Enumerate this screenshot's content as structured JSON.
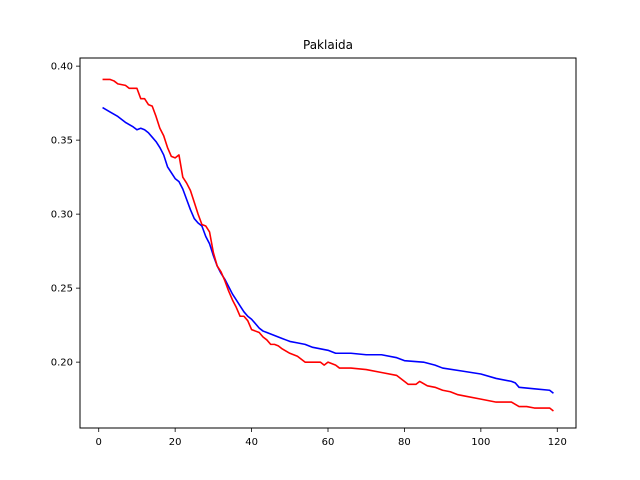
{
  "chart_data": {
    "type": "line",
    "title": "Paklaida",
    "xlabel": "",
    "ylabel": "",
    "xlim": [
      -4.9,
      124.9
    ],
    "ylim": [
      0.1555,
      0.4055
    ],
    "xticks": [
      0,
      20,
      40,
      60,
      80,
      100,
      120
    ],
    "yticks": [
      0.2,
      0.25,
      0.3,
      0.35,
      0.4
    ],
    "xtick_labels": [
      "0",
      "20",
      "40",
      "60",
      "80",
      "100",
      "120"
    ],
    "ytick_labels": [
      "0.20",
      "0.25",
      "0.30",
      "0.35",
      "0.40"
    ],
    "grid": false,
    "legend": "none",
    "series": [
      {
        "color": "#0000ff",
        "points": [
          [
            1,
            0.372
          ],
          [
            3,
            0.369
          ],
          [
            5,
            0.366
          ],
          [
            7,
            0.362
          ],
          [
            9,
            0.359
          ],
          [
            10,
            0.357
          ],
          [
            11,
            0.358
          ],
          [
            12,
            0.357
          ],
          [
            13,
            0.355
          ],
          [
            14,
            0.352
          ],
          [
            15,
            0.349
          ],
          [
            16,
            0.345
          ],
          [
            17,
            0.34
          ],
          [
            18,
            0.332
          ],
          [
            19,
            0.328
          ],
          [
            20,
            0.324
          ],
          [
            21,
            0.322
          ],
          [
            22,
            0.317
          ],
          [
            23,
            0.31
          ],
          [
            24,
            0.303
          ],
          [
            25,
            0.297
          ],
          [
            26,
            0.294
          ],
          [
            27,
            0.292
          ],
          [
            28,
            0.285
          ],
          [
            29,
            0.28
          ],
          [
            30,
            0.272
          ],
          [
            31,
            0.265
          ],
          [
            32,
            0.26
          ],
          [
            33,
            0.256
          ],
          [
            34,
            0.251
          ],
          [
            35,
            0.246
          ],
          [
            36,
            0.242
          ],
          [
            37,
            0.238
          ],
          [
            38,
            0.234
          ],
          [
            39,
            0.231
          ],
          [
            40,
            0.229
          ],
          [
            41,
            0.226
          ],
          [
            42,
            0.223
          ],
          [
            43,
            0.221
          ],
          [
            44,
            0.22
          ],
          [
            45,
            0.219
          ],
          [
            46,
            0.218
          ],
          [
            47,
            0.217
          ],
          [
            48,
            0.216
          ],
          [
            49,
            0.215
          ],
          [
            50,
            0.214
          ],
          [
            52,
            0.213
          ],
          [
            54,
            0.212
          ],
          [
            56,
            0.21
          ],
          [
            58,
            0.209
          ],
          [
            60,
            0.208
          ],
          [
            62,
            0.206
          ],
          [
            64,
            0.206
          ],
          [
            66,
            0.206
          ],
          [
            70,
            0.205
          ],
          [
            74,
            0.205
          ],
          [
            78,
            0.203
          ],
          [
            80,
            0.201
          ],
          [
            85,
            0.2
          ],
          [
            88,
            0.198
          ],
          [
            90,
            0.196
          ],
          [
            95,
            0.194
          ],
          [
            100,
            0.192
          ],
          [
            104,
            0.189
          ],
          [
            108,
            0.187
          ],
          [
            109,
            0.186
          ],
          [
            110,
            0.183
          ],
          [
            114,
            0.182
          ],
          [
            118,
            0.181
          ],
          [
            119,
            0.179
          ]
        ]
      },
      {
        "color": "#ff0000",
        "points": [
          [
            1,
            0.391
          ],
          [
            3,
            0.391
          ],
          [
            4,
            0.39
          ],
          [
            5,
            0.388
          ],
          [
            7,
            0.387
          ],
          [
            8,
            0.385
          ],
          [
            10,
            0.385
          ],
          [
            11,
            0.378
          ],
          [
            12,
            0.378
          ],
          [
            13,
            0.374
          ],
          [
            14,
            0.373
          ],
          [
            15,
            0.366
          ],
          [
            16,
            0.358
          ],
          [
            17,
            0.353
          ],
          [
            18,
            0.345
          ],
          [
            19,
            0.339
          ],
          [
            20,
            0.338
          ],
          [
            21,
            0.34
          ],
          [
            22,
            0.325
          ],
          [
            23,
            0.321
          ],
          [
            24,
            0.316
          ],
          [
            25,
            0.308
          ],
          [
            26,
            0.3
          ],
          [
            27,
            0.293
          ],
          [
            28,
            0.292
          ],
          [
            29,
            0.288
          ],
          [
            30,
            0.274
          ],
          [
            31,
            0.265
          ],
          [
            32,
            0.261
          ],
          [
            33,
            0.255
          ],
          [
            34,
            0.248
          ],
          [
            35,
            0.242
          ],
          [
            36,
            0.237
          ],
          [
            37,
            0.231
          ],
          [
            38,
            0.231
          ],
          [
            39,
            0.228
          ],
          [
            40,
            0.222
          ],
          [
            41,
            0.221
          ],
          [
            42,
            0.22
          ],
          [
            43,
            0.217
          ],
          [
            44,
            0.215
          ],
          [
            45,
            0.212
          ],
          [
            46,
            0.212
          ],
          [
            47,
            0.211
          ],
          [
            48,
            0.209
          ],
          [
            50,
            0.206
          ],
          [
            52,
            0.204
          ],
          [
            54,
            0.2
          ],
          [
            56,
            0.2
          ],
          [
            58,
            0.2
          ],
          [
            59,
            0.198
          ],
          [
            60,
            0.2
          ],
          [
            62,
            0.198
          ],
          [
            63,
            0.196
          ],
          [
            66,
            0.196
          ],
          [
            70,
            0.195
          ],
          [
            74,
            0.193
          ],
          [
            78,
            0.191
          ],
          [
            80,
            0.187
          ],
          [
            81,
            0.185
          ],
          [
            83,
            0.185
          ],
          [
            84,
            0.187
          ],
          [
            86,
            0.184
          ],
          [
            88,
            0.183
          ],
          [
            90,
            0.181
          ],
          [
            92,
            0.18
          ],
          [
            94,
            0.178
          ],
          [
            96,
            0.177
          ],
          [
            100,
            0.175
          ],
          [
            102,
            0.174
          ],
          [
            104,
            0.173
          ],
          [
            108,
            0.173
          ],
          [
            110,
            0.17
          ],
          [
            112,
            0.17
          ],
          [
            114,
            0.169
          ],
          [
            118,
            0.169
          ],
          [
            119,
            0.167
          ]
        ]
      }
    ]
  }
}
